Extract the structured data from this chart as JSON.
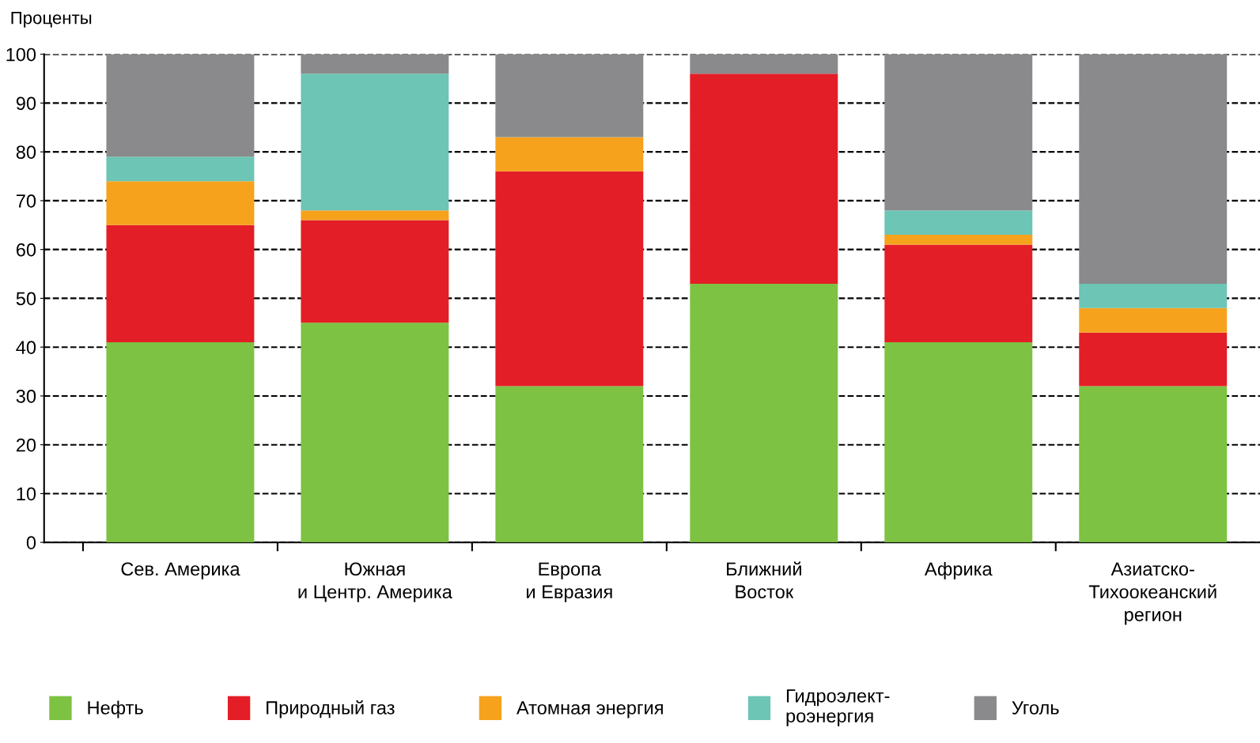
{
  "chart_data": {
    "type": "bar",
    "stacked": true,
    "ylabel": "Проценты",
    "categories": [
      "Сев. Америка",
      "Южная\nи Центр. Америка",
      "Европа\nи Евразия",
      "Ближний\nВосток",
      "Африка",
      "Азиатско-\nТихоокеанский\nрегион"
    ],
    "series": [
      {
        "name": "Нефть",
        "color": "#7dc242",
        "values": [
          41,
          45,
          32,
          53,
          41,
          32
        ]
      },
      {
        "name": "Природный газ",
        "color": "#e41e26",
        "values": [
          24,
          21,
          44,
          43,
          20,
          11
        ]
      },
      {
        "name": "Атомная энергия",
        "color": "#f6a21d",
        "values": [
          9,
          2,
          7,
          0,
          2,
          5
        ]
      },
      {
        "name": "Гидроэлект-\nроэнергия",
        "color": "#6cc5b5",
        "values": [
          5,
          28,
          0,
          0,
          5,
          5
        ]
      },
      {
        "name": "Уголь",
        "color": "#8a8a8c",
        "values": [
          21,
          4,
          17,
          4,
          32,
          47
        ]
      }
    ],
    "ylim": [
      0,
      100
    ],
    "yticks": [
      0,
      10,
      20,
      30,
      40,
      50,
      60,
      70,
      80,
      90,
      100
    ],
    "grid": "y",
    "legend": "bottom"
  }
}
